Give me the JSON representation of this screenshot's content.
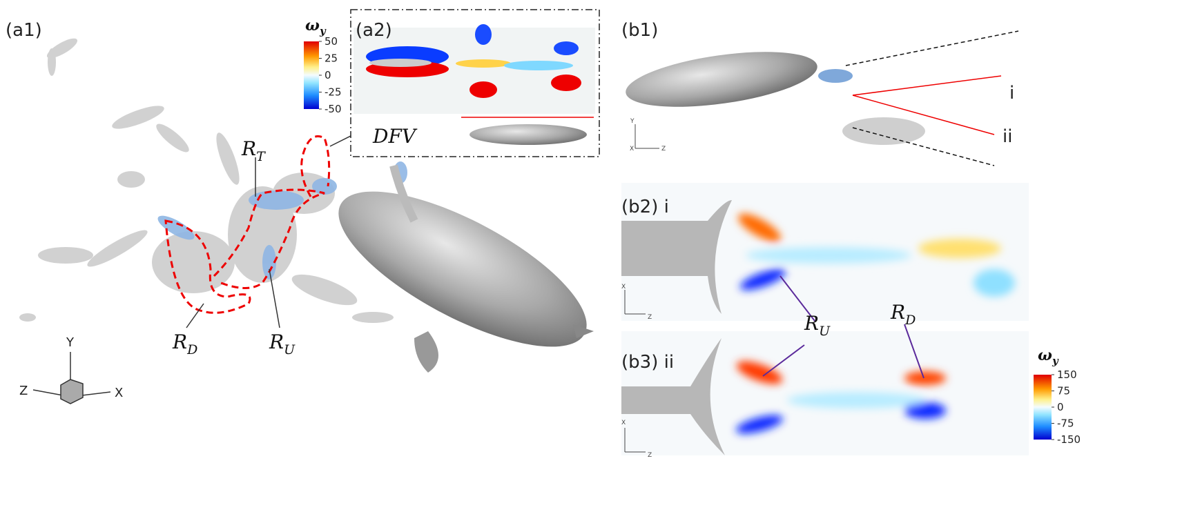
{
  "labels": {
    "a1": "(a1)",
    "a2": "(a2)",
    "b1": "(b1)",
    "b2": "(b2) i",
    "b3": "(b3) ii"
  },
  "annotations": {
    "RT": {
      "base": "R",
      "sub": "T"
    },
    "RD": {
      "base": "R",
      "sub": "D"
    },
    "RU": {
      "base": "R",
      "sub": "U"
    },
    "RU2": {
      "base": "R",
      "sub": "U"
    },
    "RD2": {
      "base": "R",
      "sub": "D"
    },
    "DFV": "DFV",
    "i": "i",
    "ii": "ii"
  },
  "axes": {
    "a1": {
      "y": "Y",
      "z": "Z",
      "x": "X"
    },
    "b1": {
      "y": "Y",
      "x": "X",
      "z": "Z"
    },
    "b2": {
      "x": "X",
      "z": "Z"
    },
    "b3": {
      "x": "X",
      "z": "Z"
    }
  },
  "colorbars": [
    {
      "title": {
        "base": "ω",
        "sub": "y"
      },
      "ticks": [
        50,
        25,
        0,
        -25,
        -50
      ]
    },
    {
      "title": {
        "base": "ω",
        "sub": "y"
      },
      "ticks": [
        150,
        75,
        0,
        -75,
        -150
      ]
    }
  ]
}
